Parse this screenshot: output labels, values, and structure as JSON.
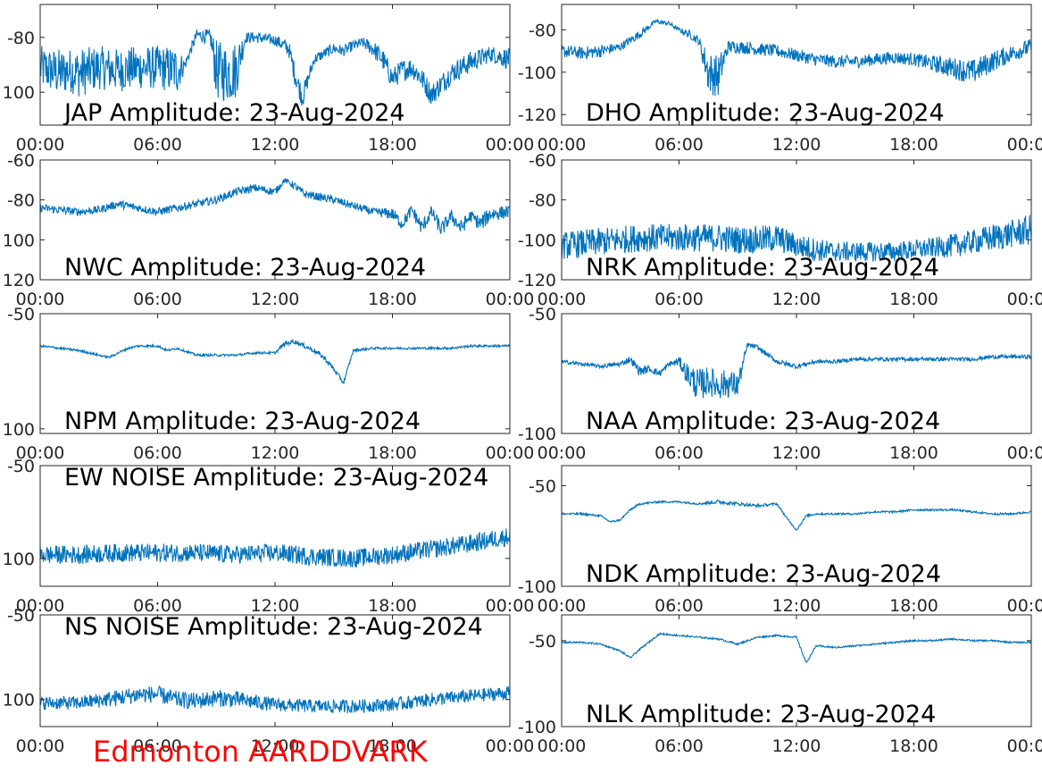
{
  "footer": {
    "text": "Edmonton AARDDVARK",
    "color": "#ff0000"
  },
  "colors": {
    "trace": "#0072bd",
    "axis": "#262626"
  },
  "chart_data": [
    {
      "type": "line",
      "station": "JAP",
      "title": "JAP Amplitude: 23-Aug-2024",
      "xlim": [
        0,
        24
      ],
      "ylim": [
        -112,
        -68
      ],
      "xticks": [
        "00:00",
        "06:00",
        "12:00",
        "18:00",
        "00:00"
      ],
      "yticks": [
        {
          "v": -80,
          "label": "-80"
        },
        {
          "v": -100,
          "label": "100"
        }
      ],
      "x": [
        0,
        0.5,
        1,
        1.5,
        2,
        3,
        4,
        5,
        6,
        7,
        7.4,
        8,
        8.7,
        9,
        9.5,
        10,
        10.5,
        11,
        12,
        12.7,
        13,
        13.4,
        14,
        15,
        15.5,
        16,
        16.5,
        17,
        17.5,
        18,
        18.5,
        19,
        19.5,
        20,
        21,
        22,
        23,
        24
      ],
      "y": [
        -91,
        -92,
        -93,
        -92,
        -93,
        -91,
        -92,
        -91,
        -91,
        -92,
        -90,
        -79,
        -80,
        -92,
        -93,
        -92,
        -80,
        -80,
        -81,
        -84,
        -93,
        -102,
        -88,
        -84,
        -85,
        -83,
        -82,
        -84,
        -88,
        -95,
        -92,
        -91,
        -95,
        -101,
        -93,
        -89,
        -86,
        -88
      ],
      "noise": [
        8,
        8,
        9,
        8,
        9,
        8,
        8,
        8,
        8,
        9,
        2,
        2,
        3,
        11,
        11,
        11,
        2,
        2,
        2,
        3,
        4,
        4,
        2,
        2,
        2,
        2,
        2,
        3,
        4,
        4,
        4,
        4,
        4,
        4,
        4,
        4,
        3,
        4
      ]
    },
    {
      "type": "line",
      "station": "DHO",
      "title": "DHO Amplitude: 23-Aug-2024",
      "xlim": [
        0,
        24
      ],
      "ylim": [
        -125,
        -68
      ],
      "xticks": [
        "00:00",
        "06:00",
        "12:00",
        "18:00",
        "00:00"
      ],
      "yticks": [
        {
          "v": -80,
          "label": "-80"
        },
        {
          "v": -100,
          "label": "-100"
        },
        {
          "v": -120,
          "label": "-120"
        }
      ],
      "x": [
        0,
        1,
        2,
        3,
        4,
        4.8,
        5.5,
        6,
        6.5,
        7,
        7.5,
        8,
        8.5,
        9,
        10,
        11,
        12,
        13,
        14,
        15,
        16,
        17,
        18,
        19,
        20,
        21,
        22,
        23,
        24
      ],
      "y": [
        -90,
        -91,
        -90,
        -88,
        -82,
        -76,
        -77,
        -80,
        -82,
        -85,
        -100,
        -102,
        -88,
        -88,
        -89,
        -90,
        -92,
        -94,
        -95,
        -95,
        -94,
        -93,
        -94,
        -96,
        -98,
        -100,
        -95,
        -91,
        -88
      ],
      "noise": [
        3,
        3,
        3,
        2,
        2,
        1,
        1,
        1,
        2,
        2,
        10,
        10,
        3,
        3,
        3,
        3,
        3,
        3,
        3,
        3,
        3,
        3,
        3,
        4,
        5,
        6,
        5,
        4,
        4
      ]
    },
    {
      "type": "line",
      "station": "NWC",
      "title": "NWC Amplitude: 23-Aug-2024",
      "xlim": [
        0,
        24
      ],
      "ylim": [
        -120,
        -60
      ],
      "xticks": [
        "00:00",
        "06:00",
        "12:00",
        "18:00",
        "00:00"
      ],
      "yticks": [
        {
          "v": -60,
          "label": "-60"
        },
        {
          "v": -80,
          "label": "-80"
        },
        {
          "v": -100,
          "label": "100"
        },
        {
          "v": -120,
          "label": "120"
        }
      ],
      "x": [
        0,
        1,
        2,
        3,
        4,
        5,
        6,
        7,
        8,
        9,
        10,
        11,
        12,
        12.5,
        13,
        13.5,
        14,
        15,
        16,
        17,
        18,
        18.5,
        19,
        19.5,
        20,
        20.5,
        21,
        21.5,
        22,
        22.5,
        23,
        24
      ],
      "y": [
        -84,
        -85,
        -86,
        -85,
        -82,
        -84,
        -86,
        -84,
        -82,
        -80,
        -76,
        -74,
        -76,
        -70,
        -73,
        -77,
        -78,
        -80,
        -83,
        -86,
        -87,
        -92,
        -85,
        -94,
        -86,
        -95,
        -88,
        -94,
        -88,
        -92,
        -87,
        -86
      ],
      "noise": [
        2,
        2,
        2,
        2,
        2,
        2,
        2,
        2,
        2,
        2,
        2,
        2,
        2,
        1,
        2,
        2,
        2,
        2,
        2,
        2,
        3,
        3,
        3,
        4,
        3,
        4,
        3,
        4,
        3,
        4,
        4,
        3
      ]
    },
    {
      "type": "line",
      "station": "NRK",
      "title": "NRK Amplitude: 23-Aug-2024",
      "xlim": [
        0,
        24
      ],
      "ylim": [
        -120,
        -60
      ],
      "xticks": [
        "00:00",
        "06:00",
        "12:00",
        "18:00",
        "00:00"
      ],
      "yticks": [
        {
          "v": -60,
          "label": "-60"
        },
        {
          "v": -80,
          "label": "-80"
        },
        {
          "v": -100,
          "label": "-100"
        },
        {
          "v": -120,
          "label": "-120"
        }
      ],
      "x": [
        0,
        1,
        2,
        3,
        4,
        5,
        6,
        7,
        8,
        9,
        10,
        11,
        12,
        13,
        14,
        15,
        16,
        17,
        18,
        19,
        20,
        21,
        22,
        23,
        24
      ],
      "y": [
        -103,
        -102,
        -101,
        -100,
        -99,
        -99,
        -99,
        -99,
        -99,
        -100,
        -100,
        -99,
        -103,
        -105,
        -106,
        -106,
        -106,
        -106,
        -105,
        -104,
        -103,
        -101,
        -99,
        -97,
        -95
      ],
      "noise": [
        7,
        7,
        7,
        7,
        7,
        7,
        7,
        7,
        7,
        7,
        7,
        7,
        6,
        6,
        5,
        5,
        5,
        5,
        5,
        5,
        6,
        6,
        7,
        7,
        8
      ]
    },
    {
      "type": "line",
      "station": "NPM",
      "title": "NPM Amplitude: 23-Aug-2024",
      "xlim": [
        0,
        24
      ],
      "ylim": [
        -102,
        -50
      ],
      "xticks": [
        "00:00",
        "06:00",
        "12:00",
        "18:00",
        "00:00"
      ],
      "yticks": [
        {
          "v": -50,
          "label": "-50"
        },
        {
          "v": -100,
          "label": "100"
        }
      ],
      "x": [
        0,
        1,
        2,
        3,
        3.5,
        4,
        4.5,
        5,
        6,
        6.5,
        7,
        8,
        9,
        10,
        11,
        12,
        12.5,
        13,
        13.5,
        14,
        14.5,
        15,
        15.5,
        16,
        17,
        18,
        19,
        20,
        21,
        22,
        23,
        24
      ],
      "y": [
        -64,
        -65,
        -66,
        -68,
        -69,
        -67,
        -65,
        -64,
        -64,
        -66,
        -65,
        -68,
        -68,
        -68,
        -67,
        -67,
        -63,
        -62,
        -64,
        -66,
        -69,
        -74,
        -80,
        -66,
        -65,
        -65,
        -65,
        -65,
        -65,
        -64,
        -64,
        -64
      ],
      "noise": [
        0.5,
        0.5,
        0.5,
        0.5,
        0.5,
        0.5,
        0.5,
        0.5,
        0.5,
        0.5,
        0.5,
        0.5,
        0.5,
        0.5,
        0.5,
        0.5,
        1,
        1,
        1,
        1,
        1,
        1,
        1,
        0.5,
        0.5,
        0.5,
        0.5,
        0.5,
        0.5,
        0.5,
        0.5,
        0.5
      ]
    },
    {
      "type": "line",
      "station": "NAA",
      "title": "NAA Amplitude: 23-Aug-2024",
      "xlim": [
        0,
        24
      ],
      "ylim": [
        -100,
        -50
      ],
      "xticks": [
        "00:00",
        "06:00",
        "12:00",
        "18:00",
        "00:00"
      ],
      "yticks": [
        {
          "v": -50,
          "label": "-50"
        },
        {
          "v": -100,
          "label": "-100"
        }
      ],
      "x": [
        0,
        1,
        2,
        3,
        3.5,
        4,
        4.5,
        5,
        5.5,
        6,
        6.5,
        7,
        7.5,
        8,
        8.5,
        9,
        9.5,
        10,
        11,
        12,
        13,
        14,
        15,
        16,
        17,
        18,
        19,
        20,
        21,
        22,
        23,
        24
      ],
      "y": [
        -70,
        -71,
        -72,
        -71,
        -69,
        -74,
        -73,
        -75,
        -71,
        -70,
        -76,
        -80,
        -78,
        -80,
        -79,
        -80,
        -63,
        -64,
        -70,
        -72,
        -70,
        -70,
        -69,
        -69,
        -69,
        -69,
        -69,
        -69,
        -69,
        -68,
        -68,
        -68
      ],
      "noise": [
        0.8,
        0.8,
        0.8,
        1,
        1.5,
        2,
        1.5,
        1.5,
        1,
        2,
        5,
        7,
        6,
        6,
        6,
        5,
        1,
        1,
        1,
        1,
        0.8,
        0.8,
        0.8,
        0.8,
        0.8,
        0.8,
        0.8,
        0.8,
        0.8,
        0.8,
        0.8,
        0.8
      ]
    },
    {
      "type": "line",
      "station": "EW NOISE",
      "title": "EW NOISE Amplitude: 23-Aug-2024",
      "xlim": [
        0,
        24
      ],
      "ylim": [
        -115,
        -50
      ],
      "xticks": [
        "00:00",
        "06:00",
        "12:00",
        "18:00",
        "00:00"
      ],
      "yticks": [
        {
          "v": -50,
          "label": "-50"
        },
        {
          "v": -100,
          "label": "100"
        }
      ],
      "x": [
        0,
        2,
        4,
        6,
        8,
        10,
        12,
        13,
        14,
        16,
        18,
        20,
        22,
        23,
        24
      ],
      "y": [
        -98,
        -98,
        -97,
        -97,
        -97,
        -98,
        -97,
        -98,
        -99,
        -100,
        -98,
        -95,
        -92,
        -90,
        -88
      ],
      "noise": [
        5,
        5,
        5,
        5,
        5,
        5,
        5,
        5,
        5,
        5,
        5,
        5,
        5,
        5,
        5
      ]
    },
    {
      "type": "line",
      "station": "NDK",
      "title": "NDK Amplitude: 23-Aug-2024",
      "xlim": [
        0,
        24
      ],
      "ylim": [
        -100,
        -40
      ],
      "xticks": [
        "00:00",
        "06:00",
        "12:00",
        "18:00",
        "00:00"
      ],
      "yticks": [
        {
          "v": -50,
          "label": "-50"
        },
        {
          "v": -100,
          "label": "-100"
        }
      ],
      "x": [
        0,
        1,
        2,
        2.5,
        3,
        3.5,
        4,
        5,
        6,
        7,
        8,
        9,
        10,
        11,
        11.5,
        12,
        12.5,
        13,
        14,
        15,
        16,
        17,
        18,
        19,
        20,
        21,
        22,
        23,
        24
      ],
      "y": [
        -64,
        -64,
        -65,
        -68,
        -67,
        -62,
        -59,
        -58,
        -58,
        -59,
        -58,
        -59,
        -60,
        -59,
        -66,
        -72,
        -65,
        -64,
        -64,
        -64,
        -63,
        -63,
        -62,
        -62,
        -62,
        -63,
        -64,
        -64,
        -63
      ],
      "noise": [
        0.5,
        0.5,
        0.5,
        0.5,
        0.5,
        0.5,
        0.5,
        0.5,
        0.5,
        0.5,
        1,
        0.8,
        0.8,
        0.5,
        0.5,
        0.5,
        0.5,
        0.5,
        0.5,
        0.5,
        0.5,
        0.5,
        0.5,
        0.5,
        0.5,
        0.5,
        0.5,
        0.5,
        0.5
      ]
    },
    {
      "type": "line",
      "station": "NS NOISE",
      "title": "NS NOISE Amplitude: 23-Aug-2024",
      "xlim": [
        0,
        24
      ],
      "ylim": [
        -116,
        -50
      ],
      "xticks": [
        "00:00",
        "06:00",
        "12:00",
        "18:00",
        "00:00"
      ],
      "yticks": [
        {
          "v": -50,
          "label": "-50"
        },
        {
          "v": -100,
          "label": "100"
        }
      ],
      "x": [
        0,
        2,
        4,
        5,
        6,
        7,
        8,
        9,
        10,
        12,
        14,
        16,
        18,
        20,
        22,
        24
      ],
      "y": [
        -102,
        -102,
        -99,
        -97,
        -97,
        -100,
        -101,
        -99,
        -100,
        -103,
        -104,
        -104,
        -103,
        -100,
        -98,
        -96
      ],
      "noise": [
        4,
        4,
        5,
        5,
        5,
        5,
        5,
        5,
        5,
        4,
        4,
        4,
        4,
        4,
        4,
        4
      ]
    },
    {
      "type": "line",
      "station": "NLK",
      "title": "NLK Amplitude: 23-Aug-2024",
      "xlim": [
        0,
        24
      ],
      "ylim": [
        -100,
        -35
      ],
      "xticks": [
        "00:00",
        "06:00",
        "12:00",
        "18:00",
        "00:00"
      ],
      "yticks": [
        {
          "v": -50,
          "label": "-50"
        },
        {
          "v": -100,
          "label": "-100"
        }
      ],
      "x": [
        0,
        1,
        2,
        3,
        3.5,
        4,
        5,
        6,
        7,
        8,
        9,
        10,
        11,
        12,
        12.5,
        13,
        14,
        15,
        16,
        17,
        18,
        19,
        20,
        21,
        22,
        23,
        24
      ],
      "y": [
        -51,
        -51,
        -52,
        -56,
        -60,
        -55,
        -46,
        -47,
        -48,
        -49,
        -52,
        -48,
        -47,
        -48,
        -63,
        -53,
        -54,
        -53,
        -52,
        -51,
        -50,
        -50,
        -49,
        -50,
        -50,
        -51,
        -51
      ],
      "noise": [
        0.5,
        0.5,
        0.5,
        0.5,
        0.5,
        0.5,
        0.5,
        0.5,
        0.5,
        0.5,
        0.5,
        0.5,
        0.5,
        0.5,
        0.5,
        0.5,
        0.5,
        0.5,
        0.5,
        0.5,
        0.5,
        0.5,
        0.5,
        0.5,
        0.5,
        0.5,
        0.5
      ]
    }
  ]
}
